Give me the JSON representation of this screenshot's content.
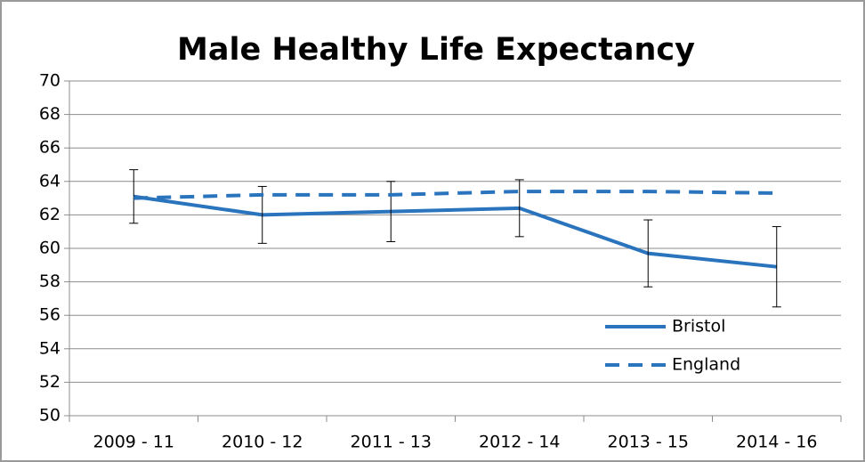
{
  "chart_data": {
    "type": "line",
    "title": "Male Healthy Life Expectancy",
    "categories": [
      "2009 - 11",
      "2010 - 12",
      "2011 - 13",
      "2012 - 14",
      "2013 - 15",
      "2014 - 16"
    ],
    "series": [
      {
        "name": "Bristol",
        "color": "#2a73bd",
        "dash": false,
        "values": [
          63.1,
          62.0,
          62.2,
          62.4,
          59.7,
          58.9
        ],
        "errors": [
          1.6,
          1.7,
          1.8,
          1.7,
          2.0,
          2.4
        ]
      },
      {
        "name": "England",
        "color": "#2a73bd",
        "dash": true,
        "values": [
          63.0,
          63.2,
          63.2,
          63.4,
          63.4,
          63.3
        ]
      }
    ],
    "ylim": [
      50,
      70
    ],
    "yticks": [
      50,
      52,
      54,
      56,
      58,
      60,
      62,
      64,
      66,
      68,
      70
    ],
    "grid": true,
    "legend": "lower right"
  }
}
